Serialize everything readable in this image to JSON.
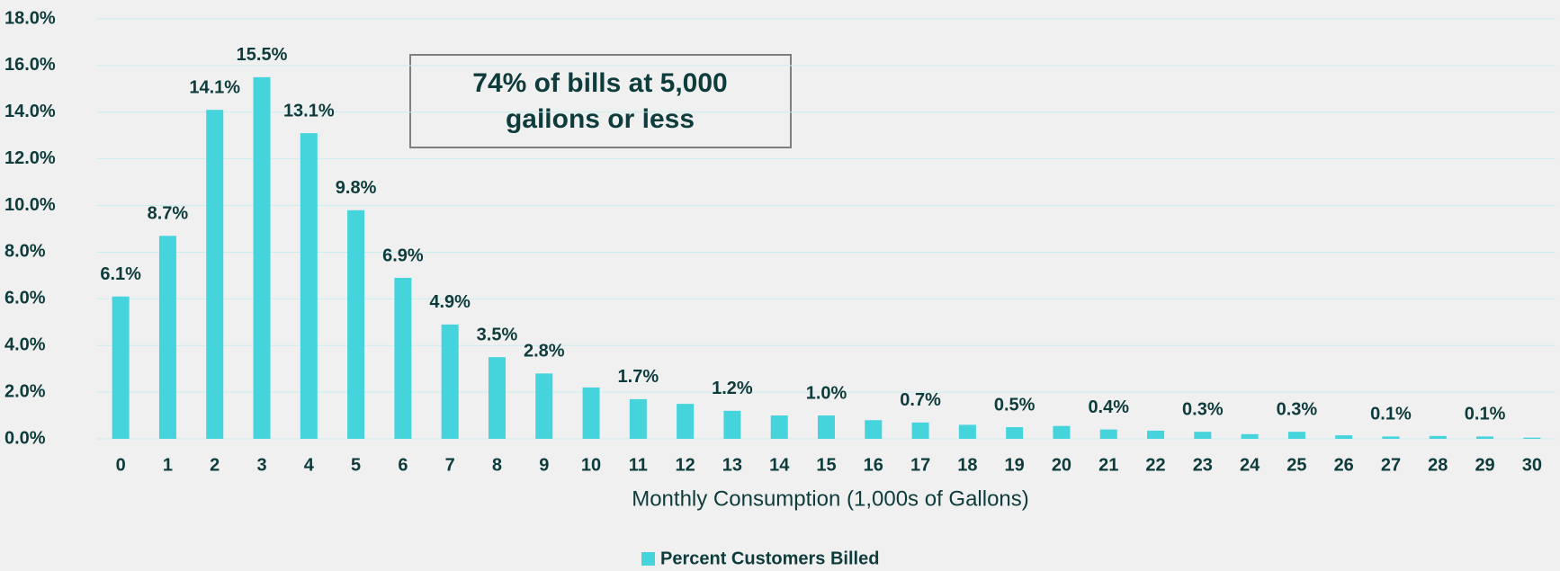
{
  "chart_data": {
    "type": "bar",
    "categories": [
      "0",
      "1",
      "2",
      "3",
      "4",
      "5",
      "6",
      "7",
      "8",
      "9",
      "10",
      "11",
      "12",
      "13",
      "14",
      "15",
      "16",
      "17",
      "18",
      "19",
      "20",
      "21",
      "22",
      "23",
      "24",
      "25",
      "26",
      "27",
      "28",
      "29",
      "30"
    ],
    "values": [
      6.1,
      8.7,
      14.1,
      15.5,
      13.1,
      9.8,
      6.9,
      4.9,
      3.5,
      2.8,
      2.2,
      1.7,
      1.5,
      1.2,
      1.0,
      1.0,
      0.8,
      0.7,
      0.6,
      0.5,
      0.55,
      0.4,
      0.35,
      0.3,
      0.2,
      0.3,
      0.15,
      0.1,
      0.12,
      0.1,
      0.05
    ],
    "value_labels": [
      "6.1%",
      "8.7%",
      "14.1%",
      "15.5%",
      "13.1%",
      "9.8%",
      "6.9%",
      "4.9%",
      "3.5%",
      "2.8%",
      null,
      "1.7%",
      null,
      "1.2%",
      null,
      "1.0%",
      null,
      "0.7%",
      null,
      "0.5%",
      null,
      "0.4%",
      null,
      "0.3%",
      null,
      "0.3%",
      null,
      "0.1%",
      null,
      "0.1%",
      null
    ],
    "series_name": "Percent Customers Billed",
    "color": "#45d3dc",
    "xlabel": "Monthly Consumption (1,000s of Gallons)",
    "annotation": [
      "74% of bills at 5,000",
      "gallons or less"
    ],
    "ylim": [
      0,
      18
    ],
    "yticks": [
      {
        "value": 0,
        "label": "0.0%"
      },
      {
        "value": 2,
        "label": "2.0%"
      },
      {
        "value": 4,
        "label": "4.0%"
      },
      {
        "value": 6,
        "label": "6.0%"
      },
      {
        "value": 8,
        "label": "8.0%"
      },
      {
        "value": 10,
        "label": "10.0%"
      },
      {
        "value": 12,
        "label": "12.0%"
      },
      {
        "value": 14,
        "label": "14.0%"
      },
      {
        "value": 16,
        "label": "16.0%"
      },
      {
        "value": 18,
        "label": "18.0%"
      }
    ],
    "grid": true
  }
}
